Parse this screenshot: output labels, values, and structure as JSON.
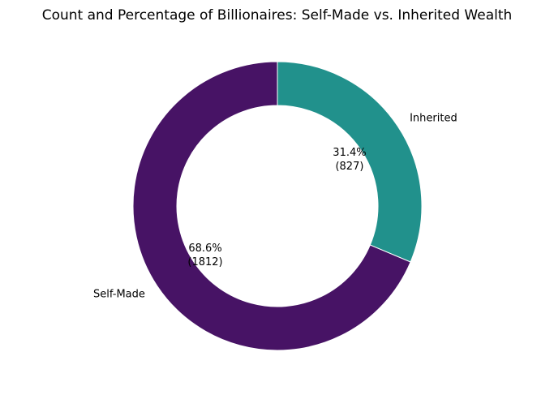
{
  "chart_data": {
    "type": "pie",
    "title": "Count and Percentage of Billionaires: Self-Made vs. Inherited Wealth",
    "donut": true,
    "slices": [
      {
        "label": "Inherited",
        "value": 827,
        "percent_label": "31.4%",
        "count_label": "(827)",
        "color": "#21918c"
      },
      {
        "label": "Self-Made",
        "value": 1812,
        "percent_label": "68.6%",
        "count_label": "(1812)",
        "color": "#471365"
      }
    ],
    "start_angle_deg": 90,
    "direction": "clockwise",
    "legend": "none"
  }
}
